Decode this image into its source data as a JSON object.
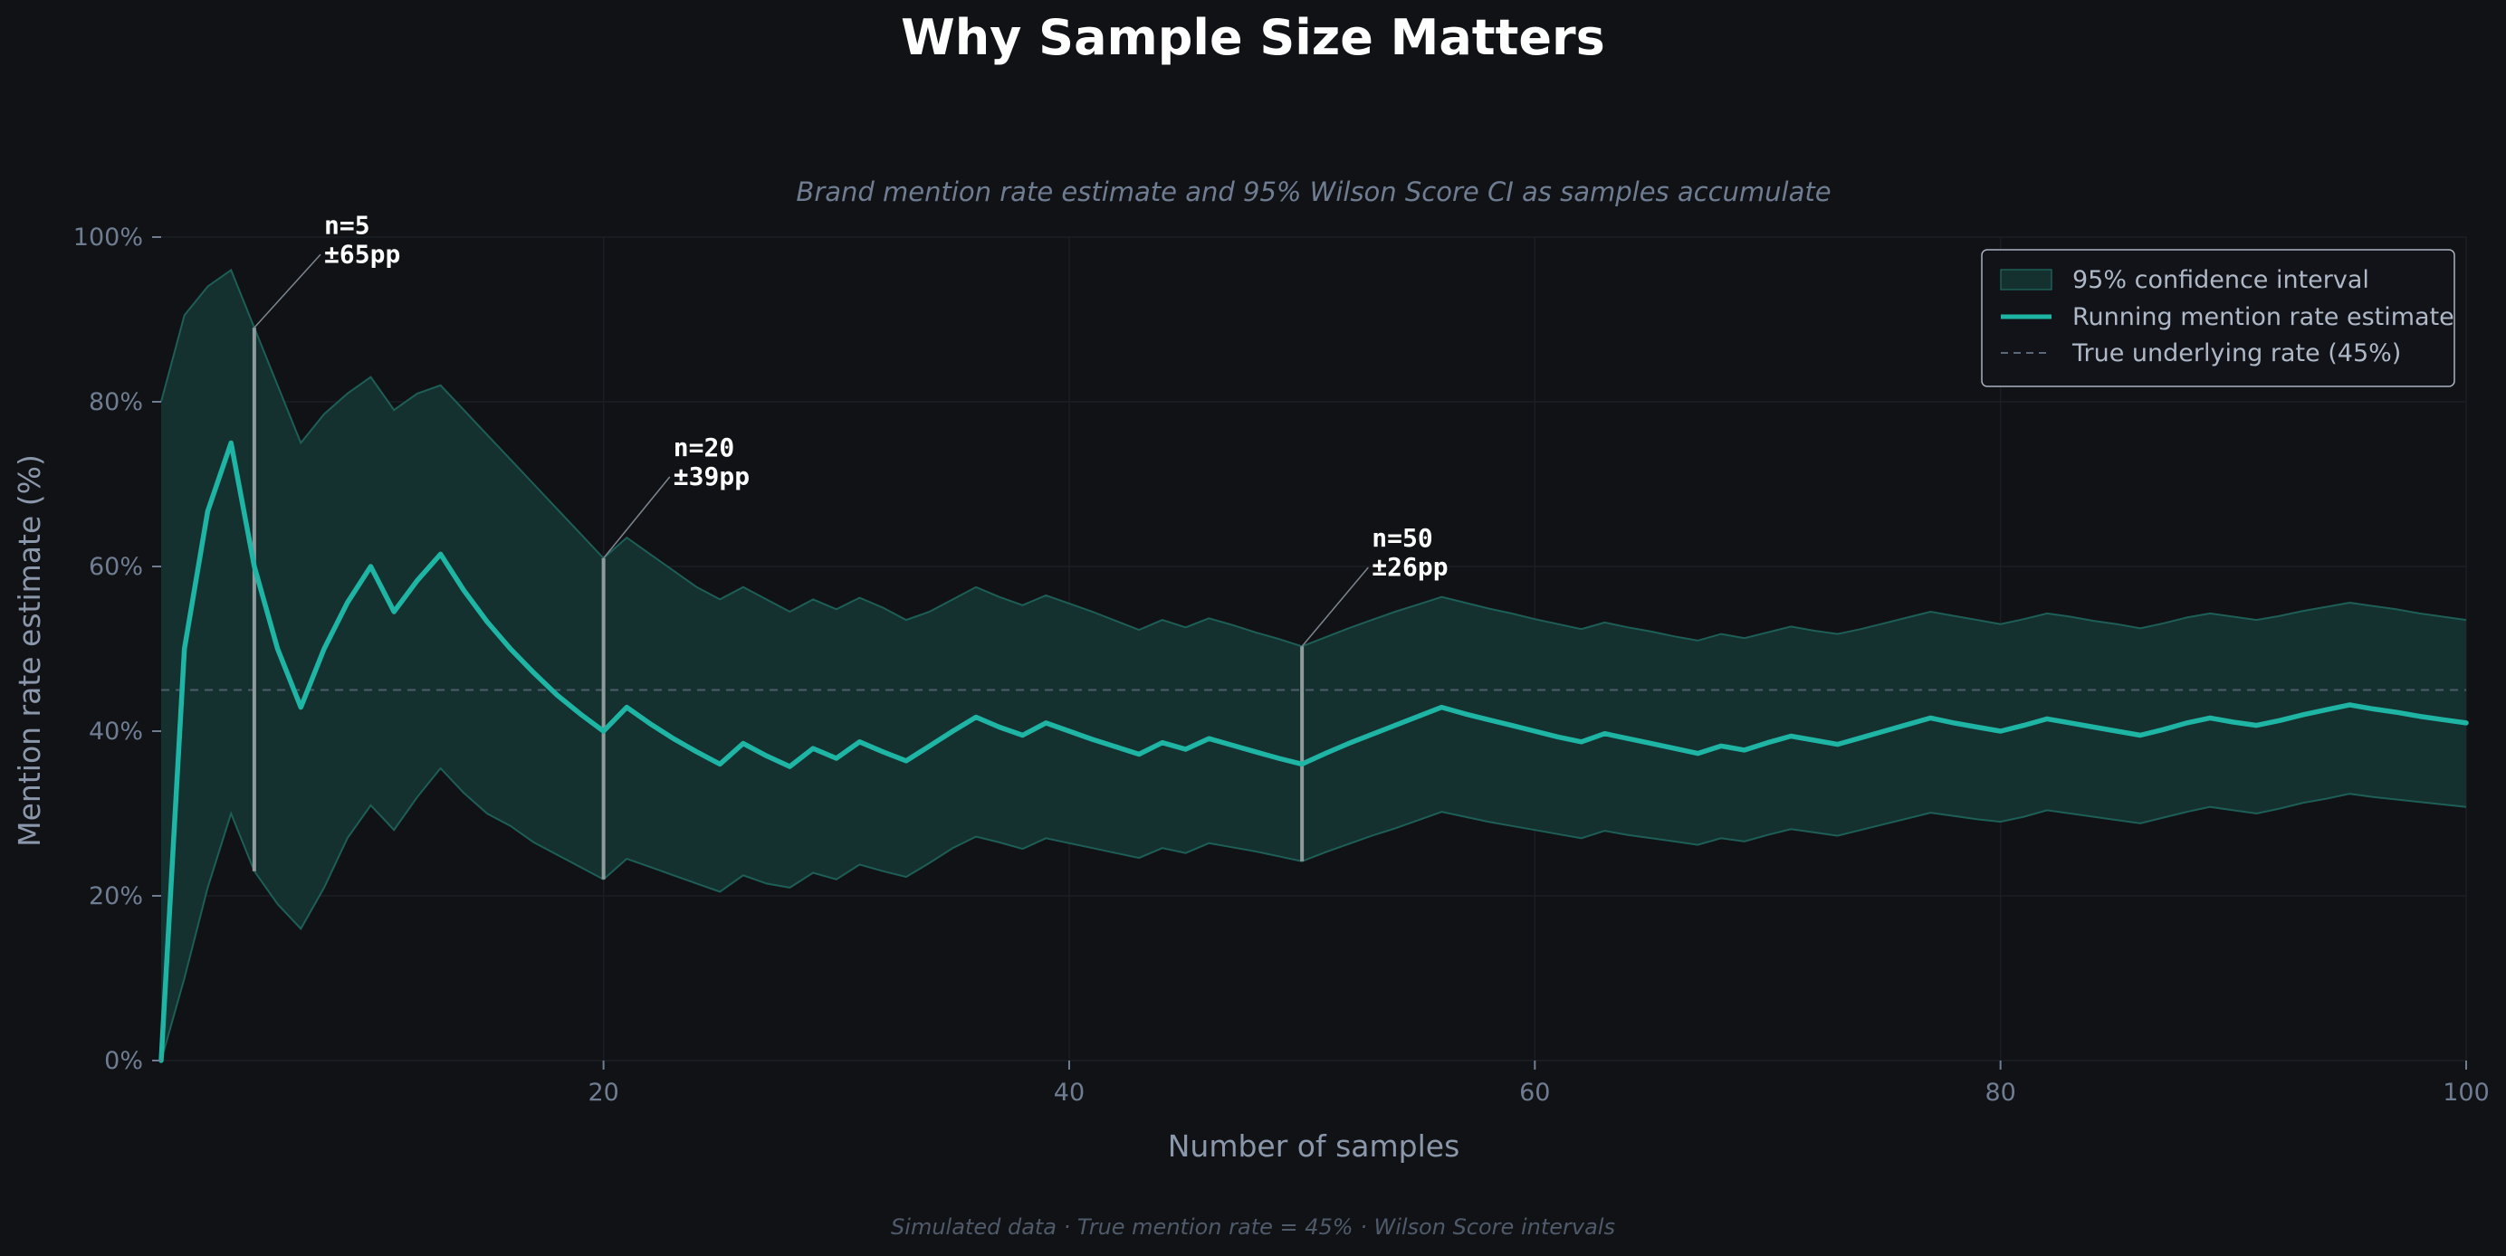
{
  "chart_data": {
    "type": "line",
    "title": "Why Sample Size Matters",
    "subtitle": "Brand mention rate estimate and 95% Wilson Score CI as samples accumulate",
    "xlabel": "Number of samples",
    "ylabel": "Mention rate estimate (%)",
    "footer": "Simulated data  ·  True mention rate = 45%  ·  Wilson Score intervals",
    "xlim": [
      1,
      100
    ],
    "ylim": [
      0,
      100
    ],
    "x_ticks": [
      20,
      40,
      60,
      80,
      100
    ],
    "y_ticks": [
      0,
      20,
      40,
      60,
      80,
      100
    ],
    "x_tick_labels": [
      "20",
      "40",
      "60",
      "80",
      "100"
    ],
    "y_tick_labels": [
      "0%",
      "20%",
      "40%",
      "60%",
      "80%",
      "100%"
    ],
    "grid": true,
    "legend_position": "top-right",
    "legend": [
      "95% confidence interval",
      "Running mention rate estimate",
      "True underlying rate (45%)"
    ],
    "true_rate": 45,
    "colors": {
      "background": "#111216",
      "estimate_line": "#1fb5a5",
      "ci_fill": "#14302f",
      "ci_edge": "#1d5f57",
      "true_rate_line": "#4c5c68",
      "marker_line": "#8f9a9c"
    },
    "series": [
      {
        "name": "Running mention rate estimate",
        "x": [
          1,
          2,
          3,
          4,
          5,
          6,
          7,
          8,
          9,
          10,
          11,
          12,
          13,
          14,
          15,
          16,
          17,
          18,
          19,
          20,
          21,
          22,
          23,
          24,
          25,
          26,
          27,
          28,
          29,
          30,
          31,
          32,
          33,
          34,
          35,
          36,
          37,
          38,
          39,
          40,
          41,
          42,
          43,
          44,
          45,
          46,
          47,
          48,
          49,
          50,
          51,
          52,
          53,
          54,
          55,
          56,
          57,
          58,
          59,
          60,
          61,
          62,
          63,
          64,
          65,
          66,
          67,
          68,
          69,
          70,
          71,
          72,
          73,
          74,
          75,
          76,
          77,
          78,
          79,
          80,
          81,
          82,
          83,
          84,
          85,
          86,
          87,
          88,
          89,
          90,
          91,
          92,
          93,
          94,
          95,
          96,
          97,
          98,
          99,
          100
        ],
        "y": [
          0,
          50,
          66.7,
          75,
          60,
          50,
          42.9,
          50,
          55.6,
          60,
          54.5,
          58.3,
          61.5,
          57.1,
          53.3,
          50,
          47.1,
          44.4,
          42.1,
          40,
          42.9,
          40.9,
          39.1,
          37.5,
          36,
          38.5,
          37,
          35.7,
          37.9,
          36.7,
          38.7,
          37.5,
          36.4,
          38.2,
          40,
          41.7,
          40.5,
          39.5,
          41,
          40,
          39,
          38.1,
          37.2,
          38.6,
          37.8,
          39.1,
          38.3,
          37.5,
          36.7,
          36,
          37.3,
          38.5,
          39.6,
          40.7,
          41.8,
          42.9,
          42.1,
          41.4,
          40.7,
          40,
          39.3,
          38.7,
          39.7,
          39.1,
          38.5,
          37.9,
          37.3,
          38.2,
          37.7,
          38.6,
          39.4,
          38.9,
          38.4,
          39.2,
          40,
          40.8,
          41.6,
          41,
          40.5,
          40,
          40.7,
          41.5,
          41,
          40.5,
          40,
          39.5,
          40.2,
          41,
          41.6,
          41.1,
          40.7,
          41.3,
          42,
          42.6,
          43.2,
          42.7,
          42.3,
          41.8,
          41.4,
          41
        ]
      },
      {
        "name": "95% confidence interval",
        "x": [
          1,
          2,
          3,
          4,
          5,
          6,
          7,
          8,
          9,
          10,
          11,
          12,
          13,
          14,
          15,
          16,
          17,
          18,
          19,
          20,
          21,
          22,
          23,
          24,
          25,
          26,
          27,
          28,
          29,
          30,
          31,
          32,
          33,
          34,
          35,
          36,
          37,
          38,
          39,
          40,
          41,
          42,
          43,
          44,
          45,
          46,
          47,
          48,
          49,
          50,
          51,
          52,
          53,
          54,
          55,
          56,
          57,
          58,
          59,
          60,
          61,
          62,
          63,
          64,
          65,
          66,
          67,
          68,
          69,
          70,
          71,
          72,
          73,
          74,
          75,
          76,
          77,
          78,
          79,
          80,
          81,
          82,
          83,
          84,
          85,
          86,
          87,
          88,
          89,
          90,
          91,
          92,
          93,
          94,
          95,
          96,
          97,
          98,
          99,
          100
        ],
        "lower": [
          0,
          10,
          21,
          30,
          23,
          19,
          16,
          21,
          27,
          31,
          28,
          32,
          35.5,
          32.5,
          30,
          28.5,
          26.5,
          25,
          23.5,
          22,
          24.5,
          23.5,
          22.5,
          21.5,
          20.5,
          22.5,
          21.5,
          21,
          22.8,
          22,
          23.8,
          23,
          22.3,
          24,
          25.8,
          27.2,
          26.5,
          25.7,
          27,
          26.4,
          25.8,
          25.2,
          24.6,
          25.8,
          25.2,
          26.4,
          25.9,
          25.4,
          24.8,
          24.2,
          25.3,
          26.3,
          27.3,
          28.2,
          29.2,
          30.2,
          29.6,
          29,
          28.5,
          28,
          27.5,
          27,
          27.9,
          27.4,
          27,
          26.6,
          26.2,
          27,
          26.6,
          27.4,
          28.1,
          27.7,
          27.3,
          28,
          28.7,
          29.4,
          30.1,
          29.7,
          29.3,
          29,
          29.6,
          30.4,
          30,
          29.6,
          29.2,
          28.8,
          29.5,
          30.2,
          30.8,
          30.4,
          30,
          30.6,
          31.3,
          31.8,
          32.4,
          32,
          31.7,
          31.4,
          31.1,
          30.8
        ],
        "upper": [
          80,
          90.5,
          94,
          96,
          89,
          82,
          75,
          78.5,
          81,
          83,
          79,
          81,
          82,
          79,
          76,
          73,
          70,
          67,
          64,
          61,
          63.5,
          61.5,
          59.5,
          57.5,
          56,
          57.5,
          56,
          54.5,
          56,
          54.8,
          56.2,
          55,
          53.5,
          54.5,
          56,
          57.5,
          56.3,
          55.3,
          56.5,
          55.5,
          54.5,
          53.4,
          52.3,
          53.5,
          52.6,
          53.7,
          52.9,
          52,
          51.2,
          50.3,
          51.4,
          52.5,
          53.5,
          54.5,
          55.4,
          56.3,
          55.6,
          54.9,
          54.3,
          53.6,
          53,
          52.4,
          53.2,
          52.6,
          52.1,
          51.5,
          51,
          51.8,
          51.3,
          52,
          52.7,
          52.2,
          51.8,
          52.4,
          53.1,
          53.8,
          54.5,
          54,
          53.5,
          53,
          53.6,
          54.3,
          53.9,
          53.4,
          53,
          52.5,
          53.1,
          53.8,
          54.3,
          53.9,
          53.5,
          54,
          54.6,
          55.1,
          55.6,
          55.2,
          54.8,
          54.3,
          53.9,
          53.5
        ]
      }
    ],
    "annotations": [
      {
        "x": 5,
        "line1": "n=5",
        "line2": "±65pp",
        "lower": 23,
        "upper": 89,
        "label_x": 8,
        "label_y": 97
      },
      {
        "x": 20,
        "line1": "n=20",
        "line2": "±39pp",
        "lower": 22,
        "upper": 61,
        "label_x": 23,
        "label_y": 70
      },
      {
        "x": 50,
        "line1": "n=50",
        "line2": "±26pp",
        "lower": 24.2,
        "upper": 50.3,
        "label_x": 53,
        "label_y": 59
      }
    ]
  }
}
